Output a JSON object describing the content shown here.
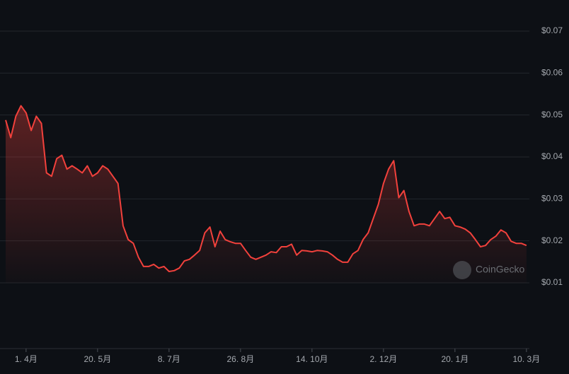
{
  "chart_data": {
    "type": "line",
    "watermark": "CoinGecko",
    "color": "#f2413c",
    "grid": true,
    "ylim": [
      0.01,
      0.07
    ],
    "yticks": [
      {
        "value": 0.01,
        "label": "$0.01"
      },
      {
        "value": 0.02,
        "label": "$0.02"
      },
      {
        "value": 0.03,
        "label": "$0.03"
      },
      {
        "value": 0.04,
        "label": "$0.04"
      },
      {
        "value": 0.05,
        "label": "$0.05"
      },
      {
        "value": 0.06,
        "label": "$0.06"
      },
      {
        "value": 0.07,
        "label": "$0.07"
      }
    ],
    "categories": [
      null,
      null,
      null,
      null,
      "1. 4月",
      null,
      null,
      null,
      null,
      null,
      null,
      null,
      null,
      null,
      null,
      null,
      null,
      null,
      "20. 5月",
      null,
      null,
      null,
      null,
      null,
      null,
      null,
      null,
      null,
      null,
      null,
      null,
      null,
      "8. 7月",
      null,
      null,
      null,
      null,
      null,
      null,
      null,
      null,
      null,
      null,
      null,
      null,
      null,
      "26. 8月",
      null,
      null,
      null,
      null,
      null,
      null,
      null,
      null,
      null,
      null,
      null,
      null,
      null,
      "14. 10月",
      null,
      null,
      null,
      null,
      null,
      null,
      null,
      null,
      null,
      null,
      null,
      null,
      null,
      "2. 12月",
      null,
      null,
      null,
      null,
      null,
      null,
      null,
      null,
      null,
      null,
      null,
      null,
      null,
      "20. 1月",
      null,
      null,
      null,
      null,
      null,
      null,
      null,
      null,
      null,
      null,
      null,
      null,
      null,
      "10. 3月"
    ],
    "values": [
      0.0488,
      0.0446,
      0.0497,
      0.0522,
      0.0505,
      0.0463,
      0.0497,
      0.048,
      0.0362,
      0.0354,
      0.0396,
      0.0404,
      0.0371,
      0.0379,
      0.0371,
      0.0362,
      0.0379,
      0.0354,
      0.0362,
      0.0379,
      0.0371,
      0.0354,
      0.0337,
      0.0236,
      0.0203,
      0.0194,
      0.0161,
      0.0139,
      0.0139,
      0.0144,
      0.0135,
      0.0139,
      0.0127,
      0.0129,
      0.0135,
      0.0152,
      0.0156,
      0.0166,
      0.0177,
      0.0219,
      0.0233,
      0.0186,
      0.0223,
      0.0203,
      0.0198,
      0.0194,
      0.0194,
      0.0177,
      0.0161,
      0.0156,
      0.0161,
      0.0166,
      0.0174,
      0.0172,
      0.0186,
      0.0186,
      0.0192,
      0.0166,
      0.0177,
      0.0176,
      0.0174,
      0.0177,
      0.0176,
      0.0174,
      0.0166,
      0.0156,
      0.0149,
      0.0149,
      0.0169,
      0.0177,
      0.0203,
      0.0219,
      0.0253,
      0.0287,
      0.0337,
      0.0371,
      0.0391,
      0.0303,
      0.032,
      0.027,
      0.0236,
      0.024,
      0.024,
      0.0236,
      0.0253,
      0.027,
      0.0253,
      0.0256,
      0.0236,
      0.0233,
      0.0228,
      0.0219,
      0.0203,
      0.0186,
      0.0189,
      0.0203,
      0.0211,
      0.0226,
      0.0219,
      0.0199,
      0.0194,
      0.0194,
      0.0189
    ]
  }
}
